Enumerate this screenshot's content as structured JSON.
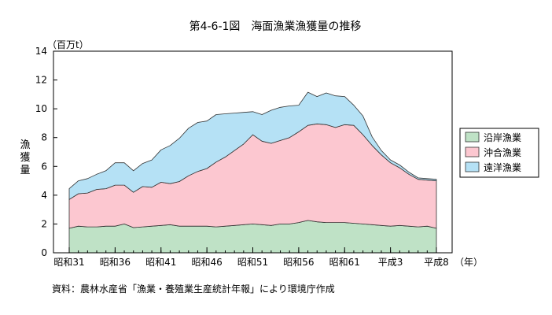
{
  "chart_data": {
    "type": "area",
    "stacked": true,
    "title": "第4-6-1図　海面漁業漁獲量の推移",
    "unit_label": "（百万t）",
    "ylabel": "漁獲量",
    "xlabel_unit": "（年）",
    "source_note": "資料：農林水産省「漁業・養殖業生産統計年報」により環境庁作成",
    "ylim": [
      0,
      14
    ],
    "y_ticks": [
      "0",
      "2",
      "4",
      "6",
      "8",
      "10",
      "12",
      "14"
    ],
    "grid": false,
    "legend_position": "right",
    "x_tick_labels": [
      {
        "label": "昭和31",
        "index": 0
      },
      {
        "label": "昭和36",
        "index": 5
      },
      {
        "label": "昭和41",
        "index": 10
      },
      {
        "label": "昭和46",
        "index": 15
      },
      {
        "label": "昭和51",
        "index": 20
      },
      {
        "label": "昭和56",
        "index": 25
      },
      {
        "label": "昭和61",
        "index": 30
      },
      {
        "label": "平成3",
        "index": 35
      },
      {
        "label": "平成8",
        "index": 40
      }
    ],
    "series": [
      {
        "name": "沿岸漁業",
        "color": "#bfe2c6",
        "values": [
          1.7,
          1.85,
          1.8,
          1.8,
          1.85,
          1.85,
          2.0,
          1.75,
          1.8,
          1.85,
          1.9,
          1.95,
          1.85,
          1.85,
          1.85,
          1.85,
          1.8,
          1.85,
          1.9,
          1.95,
          2.0,
          1.95,
          1.9,
          2.0,
          2.0,
          2.1,
          2.25,
          2.15,
          2.1,
          2.1,
          2.1,
          2.05,
          2.0,
          1.95,
          1.9,
          1.85,
          1.9,
          1.85,
          1.8,
          1.85,
          1.7
        ]
      },
      {
        "name": "沖合漁業",
        "color": "#fcc7d0",
        "values": [
          2.0,
          2.25,
          2.35,
          2.6,
          2.6,
          2.85,
          2.7,
          2.45,
          2.8,
          2.7,
          3.0,
          2.85,
          3.1,
          3.5,
          3.8,
          4.0,
          4.5,
          4.8,
          5.2,
          5.6,
          6.2,
          5.8,
          5.7,
          5.8,
          6.0,
          6.3,
          6.6,
          6.8,
          6.8,
          6.6,
          6.8,
          6.8,
          6.2,
          5.5,
          4.9,
          4.4,
          4.0,
          3.6,
          3.3,
          3.2,
          3.3
        ]
      },
      {
        "name": "遠洋漁業",
        "color": "#b5e1f5",
        "values": [
          0.75,
          0.9,
          1.0,
          1.05,
          1.25,
          1.55,
          1.55,
          1.5,
          1.6,
          1.9,
          2.25,
          2.65,
          3.0,
          3.3,
          3.4,
          3.3,
          3.3,
          3.0,
          2.6,
          2.2,
          1.6,
          1.85,
          2.3,
          2.3,
          2.2,
          1.85,
          2.3,
          1.9,
          2.2,
          2.2,
          1.95,
          1.4,
          1.3,
          0.6,
          0.3,
          0.2,
          0.2,
          0.15,
          0.1,
          0.1,
          0.1
        ]
      }
    ]
  }
}
